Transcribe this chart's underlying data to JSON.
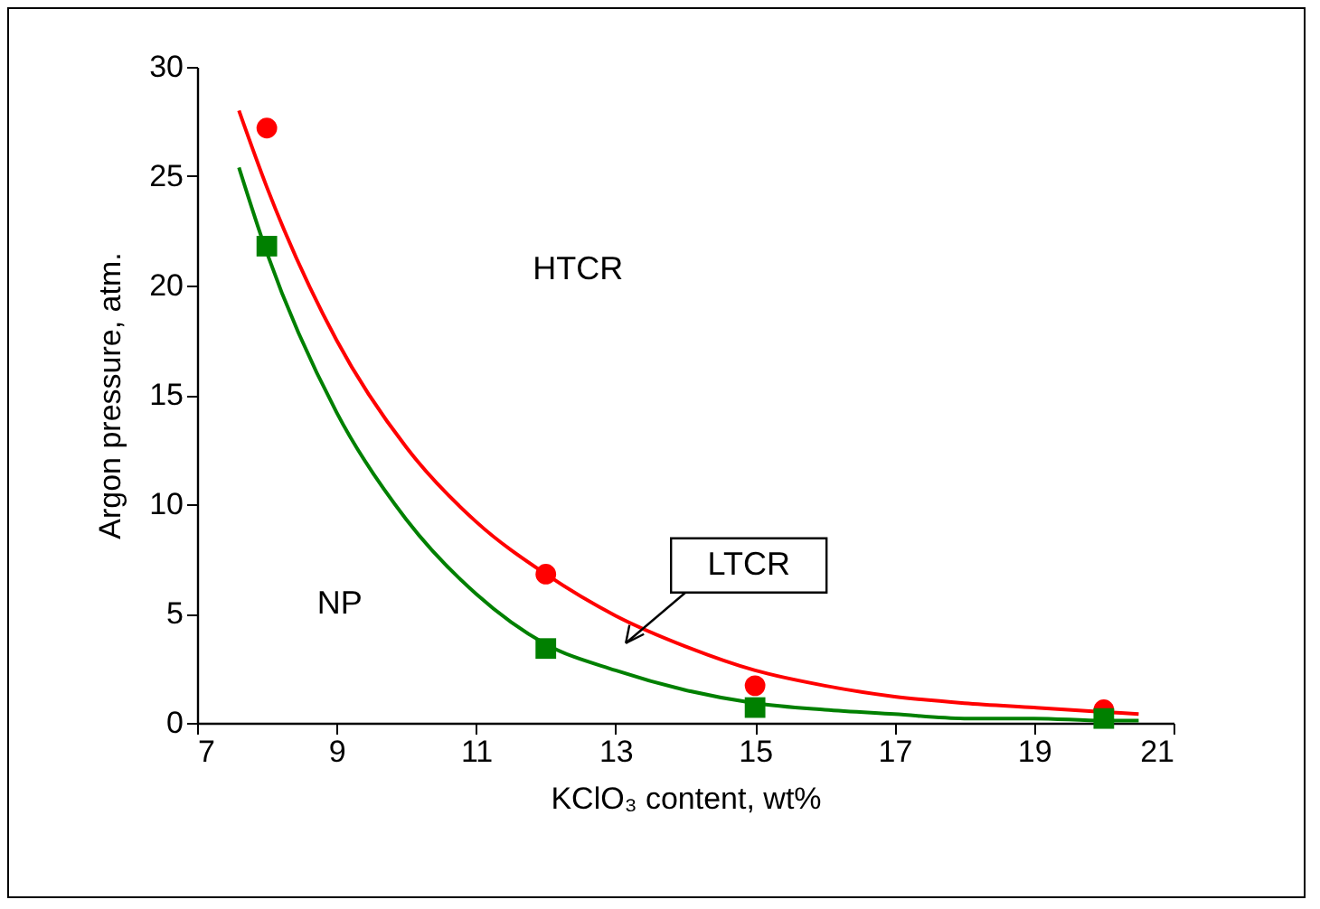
{
  "chart_data": {
    "type": "scatter",
    "xlabel": "KClO₃ content, wt%",
    "ylabel": "Argon pressure, atm.",
    "xlim": [
      7,
      21
    ],
    "xticks": [
      7,
      9,
      11,
      13,
      15,
      17,
      19,
      21
    ],
    "ylim": [
      0,
      30
    ],
    "yticks": [
      0,
      5,
      10,
      15,
      20,
      25,
      30
    ],
    "grid": false,
    "legend": false,
    "series": [
      {
        "type": "line",
        "color": "#ff0000",
        "x": [
          7.6,
          8,
          9,
          10,
          11,
          12,
          13,
          14,
          15,
          16,
          17,
          18,
          19,
          20,
          20.5
        ],
        "values": [
          28,
          24.5,
          17.5,
          12.6,
          9.2,
          6.8,
          4.9,
          3.5,
          2.4,
          1.7,
          1.2,
          0.9,
          0.7,
          0.5,
          0.4
        ]
      },
      {
        "type": "line",
        "color": "#008000",
        "x": [
          7.6,
          8,
          9,
          10,
          11,
          12,
          13,
          14,
          15,
          16,
          17,
          18,
          19,
          20,
          20.5
        ],
        "values": [
          25.4,
          21.5,
          14.2,
          9.3,
          5.9,
          3.6,
          2.4,
          1.5,
          0.9,
          0.6,
          0.4,
          0.2,
          0.2,
          0.1,
          0.1
        ]
      },
      {
        "marker": "circle",
        "color": "#ff0000",
        "x": [
          8,
          12,
          15,
          20
        ],
        "values": [
          27.2,
          6.8,
          1.7,
          0.6
        ]
      },
      {
        "marker": "square",
        "color": "#008000",
        "x": [
          8,
          12,
          15,
          20
        ],
        "values": [
          21.8,
          3.4,
          0.7,
          0.2
        ]
      }
    ],
    "annotations": [
      "HTCR",
      "NP",
      "LTCR"
    ]
  }
}
